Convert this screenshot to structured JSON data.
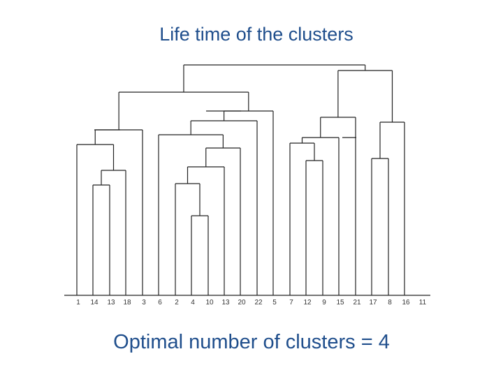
{
  "title": "Life time of the clusters",
  "footer": "Optimal number of clusters = 4",
  "colors": {
    "text_accent": "#1f4e8c",
    "lines": "#222222"
  },
  "chart_data": {
    "type": "dendrogram",
    "leaf_labels": [
      "1",
      "14",
      "13",
      "18",
      "3",
      "6",
      "2",
      "4",
      "10",
      "13",
      "20",
      "22",
      "5",
      "7",
      "12",
      "9",
      "15",
      "21",
      "17",
      "8",
      "16",
      "11"
    ]
  }
}
